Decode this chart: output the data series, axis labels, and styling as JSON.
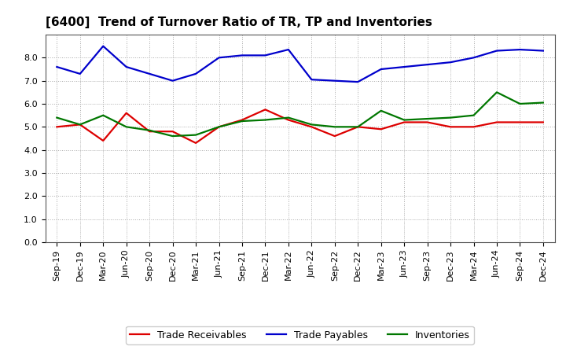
{
  "title": "[6400]  Trend of Turnover Ratio of TR, TP and Inventories",
  "x_labels": [
    "Sep-19",
    "Dec-19",
    "Mar-20",
    "Jun-20",
    "Sep-20",
    "Dec-20",
    "Mar-21",
    "Jun-21",
    "Sep-21",
    "Dec-21",
    "Mar-22",
    "Jun-22",
    "Sep-22",
    "Dec-22",
    "Mar-23",
    "Jun-23",
    "Sep-23",
    "Dec-23",
    "Mar-24",
    "Jun-24",
    "Sep-24",
    "Dec-24"
  ],
  "trade_receivables": [
    5.0,
    5.1,
    4.4,
    5.6,
    4.8,
    4.8,
    4.3,
    5.0,
    5.3,
    5.75,
    5.3,
    5.0,
    4.6,
    5.0,
    4.9,
    5.2,
    5.2,
    5.0,
    5.0,
    5.2,
    5.2,
    5.2
  ],
  "trade_payables": [
    7.6,
    7.3,
    8.5,
    7.6,
    7.3,
    7.0,
    7.3,
    8.0,
    8.1,
    8.1,
    8.35,
    7.05,
    7.0,
    6.95,
    7.5,
    7.6,
    7.7,
    7.8,
    8.0,
    8.3,
    8.35,
    8.3
  ],
  "inventories": [
    5.4,
    5.1,
    5.5,
    5.0,
    4.85,
    4.6,
    4.65,
    5.0,
    5.25,
    5.3,
    5.4,
    5.1,
    5.0,
    5.0,
    5.7,
    5.3,
    5.35,
    5.4,
    5.5,
    6.5,
    6.0,
    6.05
  ],
  "tr_color": "#dd0000",
  "tp_color": "#0000cc",
  "inv_color": "#007700",
  "tr_label": "Trade Receivables",
  "tp_label": "Trade Payables",
  "inv_label": "Inventories",
  "ylim": [
    0.0,
    9.0
  ],
  "yticks": [
    0.0,
    1.0,
    2.0,
    3.0,
    4.0,
    5.0,
    6.0,
    7.0,
    8.0
  ],
  "background_color": "#ffffff",
  "plot_bg_color": "#ffffff",
  "title_fontsize": 11,
  "axis_fontsize": 8,
  "legend_fontsize": 9,
  "line_width": 1.6
}
